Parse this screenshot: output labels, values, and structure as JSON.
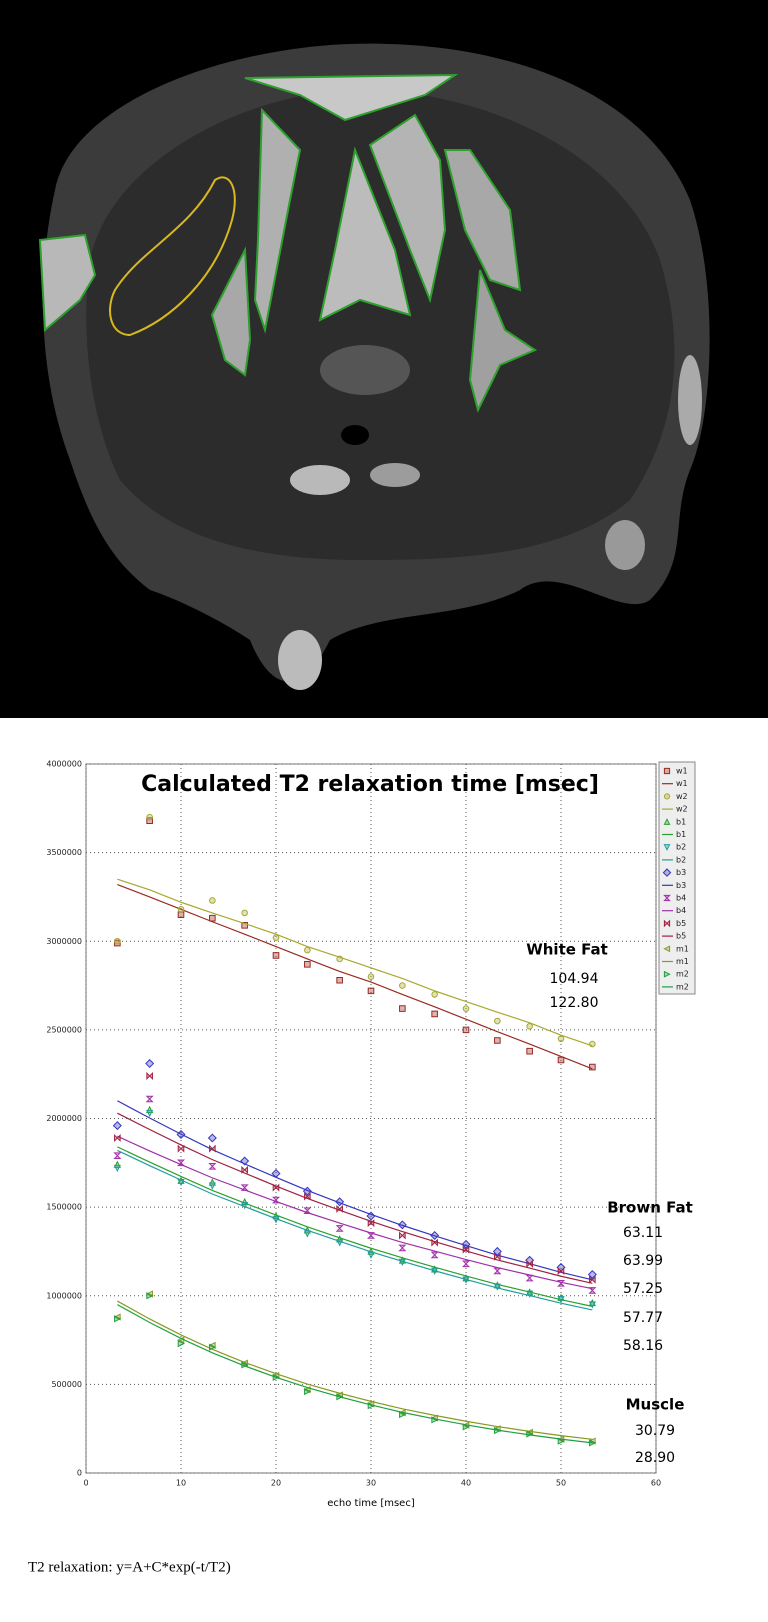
{
  "chart_data": {
    "type": "scatter",
    "title": "Calculated T2 relaxation time [msec]",
    "xlabel": "echo time [msec]",
    "caption": "T2 relaxation: y=A+C*exp(-t/T2)",
    "xlim": [
      0,
      60
    ],
    "xticks": [
      0,
      10,
      20,
      30,
      40,
      50,
      60
    ],
    "ylim": [
      0,
      4000000
    ],
    "yticks": [
      0,
      500000,
      1000000,
      1500000,
      2000000,
      2500000,
      3000000,
      3500000,
      4000000
    ],
    "grid": true,
    "legend": "top-right",
    "x": [
      3.3,
      6.7,
      10,
      13.3,
      16.7,
      20,
      23.3,
      26.7,
      30,
      33.3,
      36.7,
      40,
      43.3,
      46.7,
      50,
      53.3
    ],
    "series": [
      {
        "name": "w1",
        "color": "#9a2a22",
        "marker": "square",
        "values": [
          2990000,
          3680000,
          3150000,
          3130000,
          3090000,
          2920000,
          2870000,
          2780000,
          2720000,
          2620000,
          2590000,
          2500000,
          2440000,
          2380000,
          2330000,
          2290000
        ],
        "fit": [
          3320000,
          3250000,
          3180000,
          3110000,
          3040000,
          2970000,
          2900000,
          2830000,
          2770000,
          2700000,
          2630000,
          2560000,
          2490000,
          2420000,
          2350000,
          2280000
        ]
      },
      {
        "name": "w2",
        "color": "#a8a830",
        "marker": "circle",
        "values": [
          3000000,
          3700000,
          3180000,
          3230000,
          3160000,
          3020000,
          2950000,
          2900000,
          2800000,
          2750000,
          2700000,
          2620000,
          2550000,
          2520000,
          2450000,
          2420000
        ],
        "fit": [
          3350000,
          3290000,
          3220000,
          3160000,
          3100000,
          3040000,
          2970000,
          2910000,
          2850000,
          2790000,
          2720000,
          2660000,
          2600000,
          2540000,
          2470000,
          2410000
        ]
      },
      {
        "name": "b1",
        "color": "#2ca02c",
        "marker": "triangle-up",
        "values": [
          1740000,
          2050000,
          1650000,
          1640000,
          1530000,
          1450000,
          1370000,
          1320000,
          1250000,
          1200000,
          1150000,
          1100000,
          1060000,
          1020000,
          990000,
          960000
        ],
        "fit": [
          1840000,
          1754000,
          1673000,
          1594000,
          1523000,
          1455000,
          1389000,
          1327000,
          1268000,
          1214000,
          1161000,
          1112000,
          1064000,
          1021000,
          978000,
          940000
        ]
      },
      {
        "name": "b2",
        "color": "#1f9e9e",
        "marker": "triangle-down",
        "values": [
          1720000,
          2030000,
          1640000,
          1620000,
          1510000,
          1430000,
          1350000,
          1300000,
          1230000,
          1190000,
          1140000,
          1090000,
          1050000,
          1010000,
          980000,
          950000
        ],
        "fit": [
          1820000,
          1734000,
          1653000,
          1574000,
          1503000,
          1435000,
          1369000,
          1307000,
          1248000,
          1194000,
          1141000,
          1092000,
          1044000,
          1001000,
          958000,
          920000
        ]
      },
      {
        "name": "b3",
        "color": "#3535c0",
        "marker": "diamond",
        "values": [
          1960000,
          2310000,
          1910000,
          1890000,
          1760000,
          1690000,
          1590000,
          1530000,
          1450000,
          1400000,
          1340000,
          1290000,
          1250000,
          1200000,
          1160000,
          1120000
        ],
        "fit": [
          2100000,
          2003000,
          1912000,
          1824000,
          1744000,
          1668000,
          1594000,
          1524000,
          1459000,
          1397000,
          1338000,
          1283000,
          1229000,
          1181000,
          1132000,
          1090000
        ]
      },
      {
        "name": "b4",
        "color": "#a030a8",
        "marker": "hourglass",
        "values": [
          1790000,
          2110000,
          1750000,
          1730000,
          1610000,
          1540000,
          1480000,
          1380000,
          1340000,
          1270000,
          1230000,
          1180000,
          1140000,
          1100000,
          1070000,
          1030000
        ],
        "fit": [
          1900000,
          1817000,
          1740000,
          1665000,
          1597000,
          1532000,
          1469000,
          1410000,
          1354000,
          1301000,
          1252000,
          1204000,
          1159000,
          1117000,
          1076000,
          1040000
        ]
      },
      {
        "name": "b5",
        "color": "#a02040",
        "marker": "bowtie",
        "values": [
          1890000,
          2240000,
          1830000,
          1830000,
          1710000,
          1610000,
          1560000,
          1490000,
          1410000,
          1340000,
          1300000,
          1260000,
          1220000,
          1180000,
          1140000,
          1090000
        ],
        "fit": [
          2030000,
          1938000,
          1851000,
          1768000,
          1692000,
          1619000,
          1549000,
          1483000,
          1420000,
          1362000,
          1306000,
          1253000,
          1202000,
          1156000,
          1110000,
          1070000
        ]
      },
      {
        "name": "m1",
        "color": "#8a9a20",
        "marker": "triangle-left",
        "values": [
          880000,
          1010000,
          750000,
          720000,
          620000,
          550000,
          470000,
          440000,
          390000,
          340000,
          310000,
          270000,
          250000,
          230000,
          190000,
          180000
        ],
        "fit": [
          970000,
          869000,
          779000,
          698000,
          624000,
          560000,
          502000,
          450000,
          404000,
          362000,
          325000,
          292000,
          262000,
          235000,
          211000,
          190000
        ]
      },
      {
        "name": "m2",
        "color": "#20a040",
        "marker": "triangle-right",
        "values": [
          870000,
          1000000,
          730000,
          710000,
          610000,
          540000,
          460000,
          430000,
          380000,
          330000,
          300000,
          260000,
          240000,
          220000,
          180000,
          170000
        ],
        "fit": [
          950000,
          849000,
          759000,
          678000,
          604000,
          540000,
          482000,
          430000,
          384000,
          342000,
          305000,
          272000,
          242000,
          215000,
          191000,
          170000
        ]
      }
    ],
    "annotations": [
      "White Fat",
      "104.94",
      "122.80",
      "Brown Fat",
      "63.11",
      "63.99",
      "57.25",
      "57.77",
      "58.16",
      "Muscle",
      "30.79",
      "28.90"
    ]
  }
}
